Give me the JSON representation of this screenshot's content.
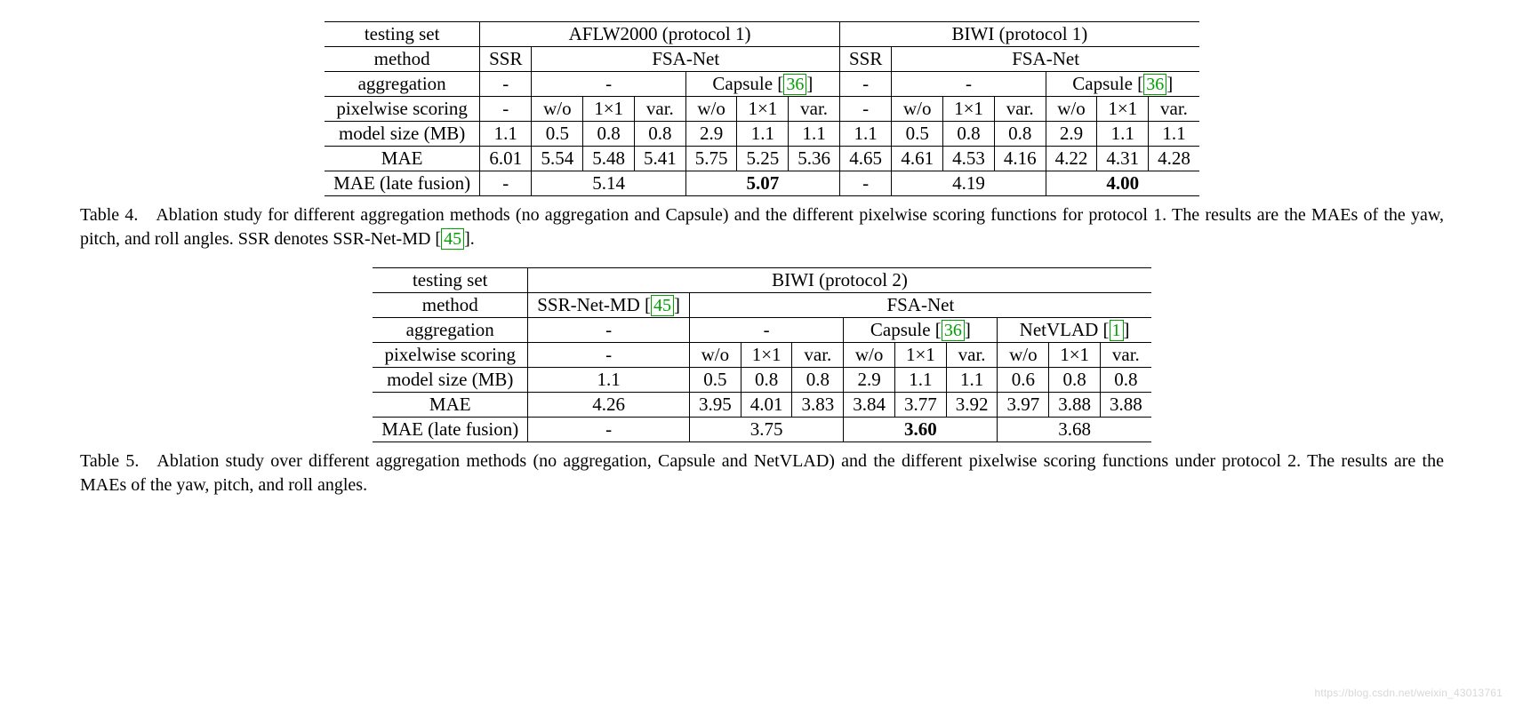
{
  "table4": {
    "headers": {
      "testing_set": "testing set",
      "method": "method",
      "aggregation": "aggregation",
      "pixelwise": "pixelwise scoring",
      "model_size": "model size (MB)",
      "mae": "MAE",
      "mae_late": "MAE (late fusion)"
    },
    "testing_sets": [
      "AFLW2000 (protocol 1)",
      "BIWI (protocol 1)"
    ],
    "methods": {
      "ssr": "SSR",
      "fsanet": "FSA-Net"
    },
    "agg": {
      "dash": "-",
      "capsule_pre": "Capsule [",
      "capsule_cite": "36",
      "capsule_post": "]"
    },
    "px": {
      "dash": "-",
      "wo": "w/o",
      "oneone": "1×1",
      "var": "var."
    },
    "model_size_row": [
      "1.1",
      "0.5",
      "0.8",
      "0.8",
      "2.9",
      "1.1",
      "1.1",
      "1.1",
      "0.5",
      "0.8",
      "0.8",
      "2.9",
      "1.1",
      "1.1"
    ],
    "mae_row": [
      "6.01",
      "5.54",
      "5.48",
      "5.41",
      "5.75",
      "5.25",
      "5.36",
      "4.65",
      "4.61",
      "4.53",
      "4.16",
      "4.22",
      "4.31",
      "4.28"
    ],
    "mae_late_row": {
      "a_dash": "-",
      "a_noagg": "5.14",
      "a_caps": "5.07",
      "b_dash": "-",
      "b_noagg": "4.19",
      "b_caps": "4.00"
    },
    "caption": "Table 4. Ablation study for different aggregation methods (no aggregation and Capsule) and the different pixelwise scoring functions for protocol 1. The results are the MAEs of the yaw, pitch, and roll angles. SSR denotes SSR-Net-MD [",
    "caption_cite": "45",
    "caption_post": "]."
  },
  "table5": {
    "headers": {
      "testing_set": "testing set",
      "method": "method",
      "aggregation": "aggregation",
      "pixelwise": "pixelwise scoring",
      "model_size": "model size (MB)",
      "mae": "MAE",
      "mae_late": "MAE (late fusion)"
    },
    "testing_set": "BIWI (protocol 2)",
    "methods": {
      "ssr_pre": "SSR-Net-MD [",
      "ssr_cite": "45",
      "ssr_post": "]",
      "fsanet": "FSA-Net"
    },
    "agg": {
      "dash": "-",
      "capsule_pre": "Capsule [",
      "capsule_cite": "36",
      "capsule_post": "]",
      "netvlad_pre": "NetVLAD [",
      "netvlad_cite": "1",
      "netvlad_post": "]"
    },
    "px": {
      "dash": "-",
      "wo": "w/o",
      "oneone": "1×1",
      "var": "var."
    },
    "model_size_row": [
      "1.1",
      "0.5",
      "0.8",
      "0.8",
      "2.9",
      "1.1",
      "1.1",
      "0.6",
      "0.8",
      "0.8"
    ],
    "mae_row": [
      "4.26",
      "3.95",
      "4.01",
      "3.83",
      "3.84",
      "3.77",
      "3.92",
      "3.97",
      "3.88",
      "3.88"
    ],
    "mae_late_row": {
      "ssr": "-",
      "noagg": "3.75",
      "caps": "3.60",
      "netvlad": "3.68"
    },
    "caption": "Table 5. Ablation study over different aggregation methods (no aggregation, Capsule and NetVLAD) and the different pixelwise scoring functions under protocol 2. The results are the MAEs of the yaw, pitch, and roll angles."
  },
  "watermark": "https://blog.csdn.net/weixin_43013761"
}
